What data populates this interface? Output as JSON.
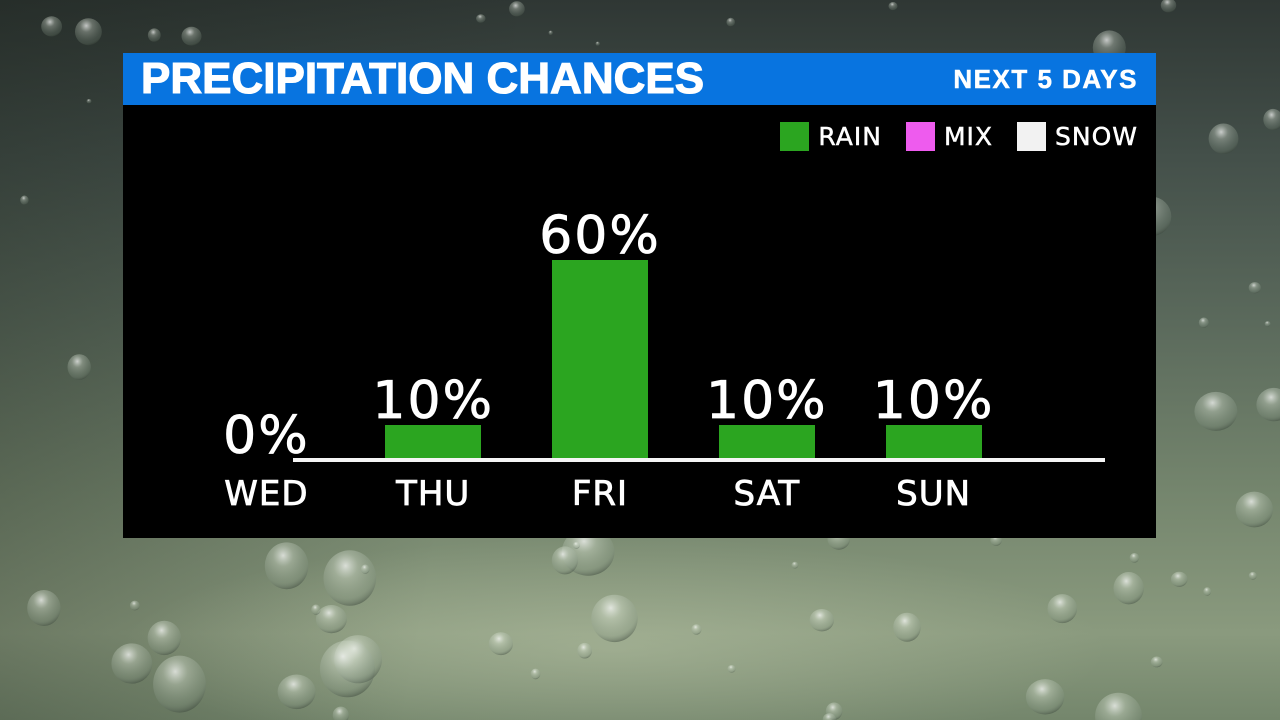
{
  "header": {
    "title": "PRECIPITATION CHANCES",
    "badge": "NEXT 5 DAYS"
  },
  "legend": [
    {
      "label": "RAIN",
      "color": "#2ba520"
    },
    {
      "label": "MIX",
      "color": "#ee5bee"
    },
    {
      "label": "SNOW",
      "color": "#f2f2f2"
    }
  ],
  "chart_data": {
    "type": "bar",
    "title": "PRECIPITATION CHANCES",
    "subtitle": "NEXT 5 DAYS",
    "categories": [
      "WED",
      "THU",
      "FRI",
      "SAT",
      "SUN"
    ],
    "values": [
      0,
      10,
      60,
      10,
      10
    ],
    "value_labels": [
      "0%",
      "10%",
      "60%",
      "10%",
      "10%"
    ],
    "series_name": "RAIN",
    "bar_color": "#2ba520",
    "ylim": [
      0,
      100
    ],
    "grid": false,
    "legend_position": "top-right",
    "axis": "baseline-only"
  },
  "colors": {
    "header_bg": "#0874e0",
    "panel_bg": "#000000",
    "text": "#ffffff",
    "baseline": "#f5f5f5"
  }
}
